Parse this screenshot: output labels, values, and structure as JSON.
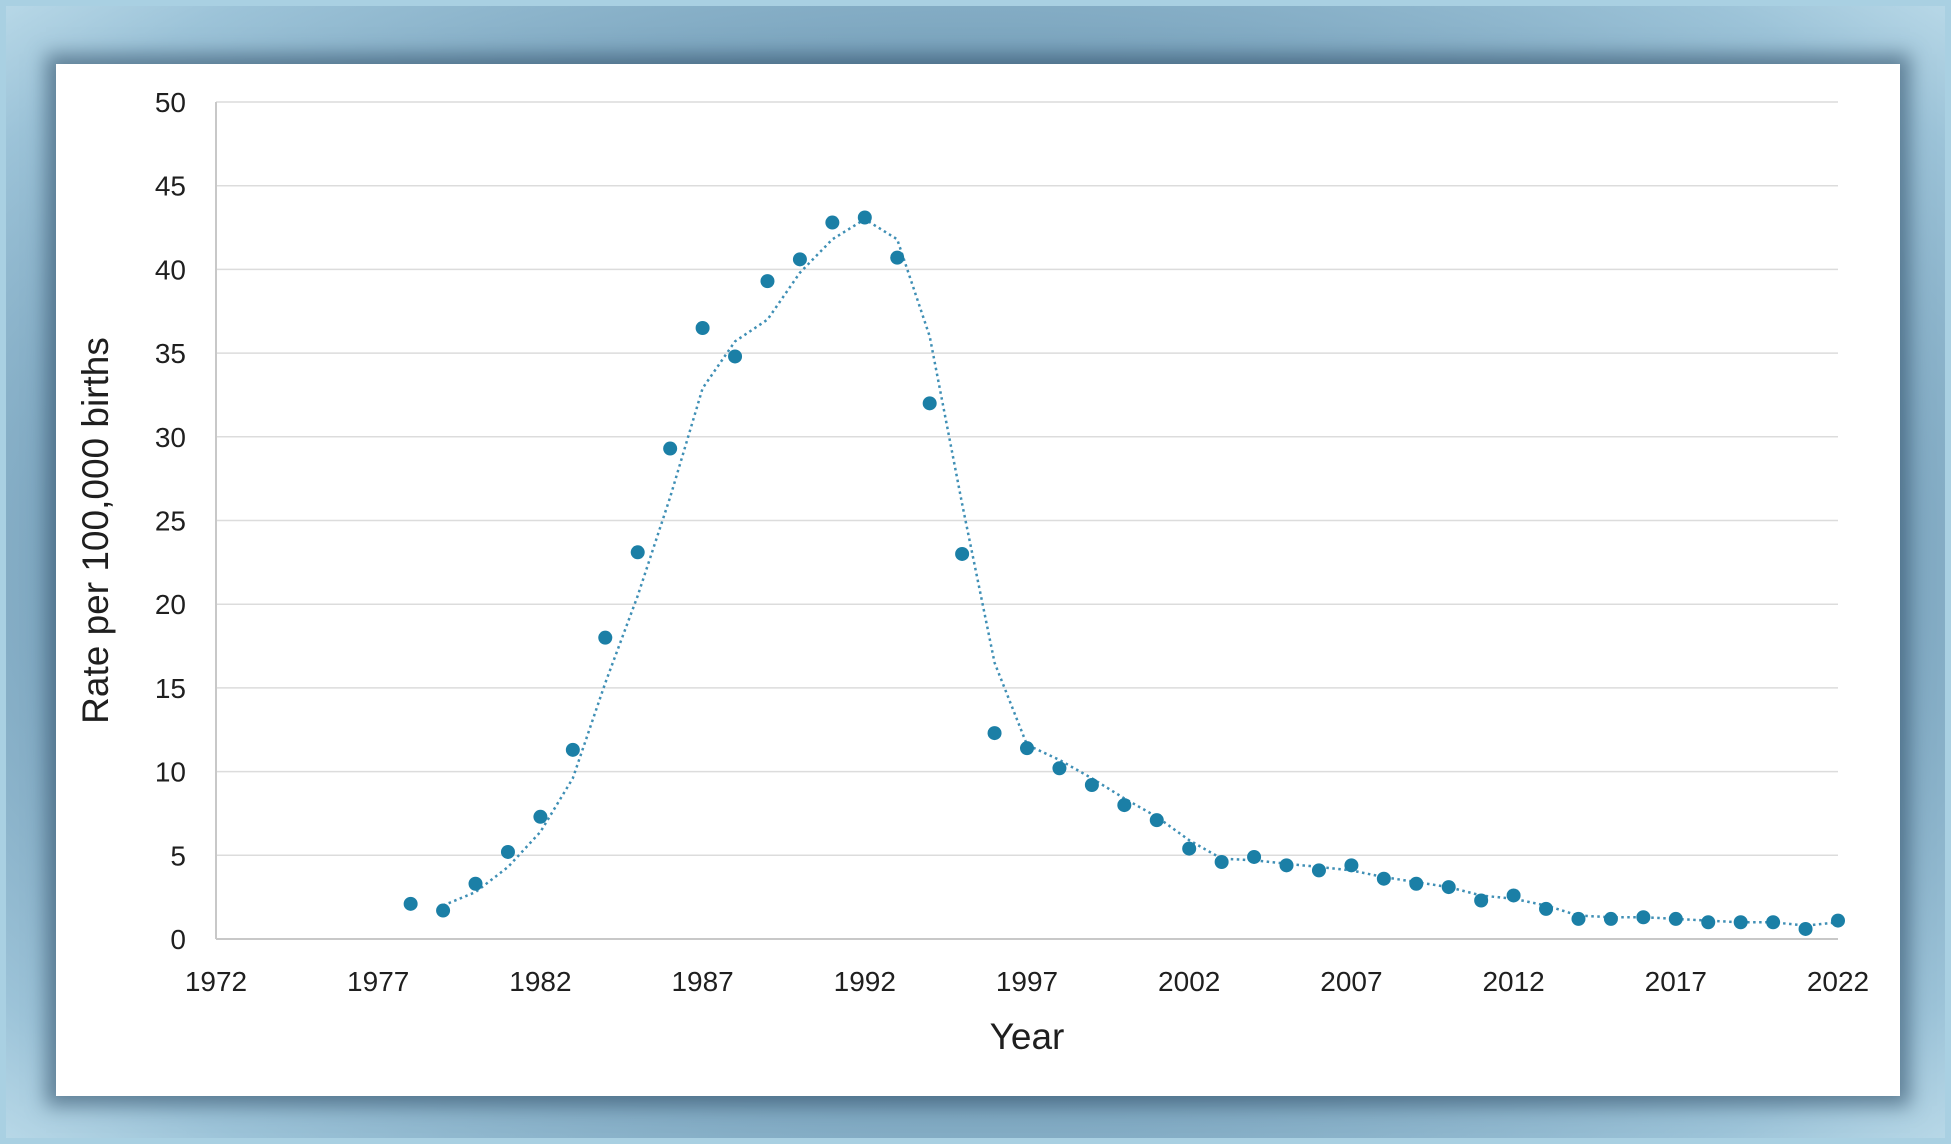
{
  "chart_data": {
    "type": "scatter",
    "xlabel": "Year",
    "ylabel": "Rate per 100,000 births",
    "xlim": [
      1972,
      2022
    ],
    "ylim": [
      0,
      50
    ],
    "x_ticks": [
      "1972",
      "1977",
      "1982",
      "1987",
      "1992",
      "1997",
      "2002",
      "2007",
      "2012",
      "2017",
      "2022"
    ],
    "y_ticks": [
      "0",
      "5",
      "10",
      "15",
      "20",
      "25",
      "30",
      "35",
      "40",
      "45",
      "50"
    ],
    "grid": "horizontal",
    "colors": {
      "point": "#1b7fa6",
      "trend": "#3f8fb5",
      "grid": "#dcdcdc",
      "axis": "#c8c8c8"
    },
    "series": [
      {
        "kind": "points",
        "x": [
          1978,
          1979,
          1980,
          1981,
          1982,
          1983,
          1984,
          1985,
          1986,
          1987,
          1988,
          1989,
          1990,
          1991,
          1992,
          1993,
          1994,
          1995,
          1996,
          1997,
          1998,
          1999,
          2000,
          2001,
          2002,
          2003,
          2004,
          2005,
          2006,
          2007,
          2008,
          2009,
          2010,
          2011,
          2012,
          2013,
          2014,
          2015,
          2016,
          2017,
          2018,
          2019,
          2020,
          2021,
          2022
        ],
        "y": [
          2.1,
          1.7,
          3.3,
          5.2,
          7.3,
          11.3,
          18.0,
          23.1,
          29.3,
          36.5,
          34.8,
          39.3,
          40.6,
          42.8,
          43.1,
          40.7,
          32.0,
          23.0,
          12.3,
          11.4,
          10.2,
          9.2,
          8.0,
          7.1,
          5.4,
          4.6,
          4.9,
          4.4,
          4.1,
          4.4,
          3.6,
          3.3,
          3.1,
          2.3,
          2.6,
          1.8,
          1.2,
          1.2,
          1.3,
          1.2,
          1.0,
          1.0,
          1.0,
          0.6,
          1.1
        ]
      },
      {
        "kind": "trend",
        "x": [
          1979,
          1980,
          1981,
          1982,
          1983,
          1984,
          1985,
          1986,
          1987,
          1988,
          1989,
          1990,
          1991,
          1992,
          1993,
          1994,
          1995,
          1996,
          1997,
          1998,
          1999,
          2000,
          2001,
          2002,
          2003,
          2004,
          2005,
          2006,
          2007,
          2008,
          2009,
          2010,
          2011,
          2012,
          2013,
          2014,
          2015,
          2016,
          2017,
          2018,
          2019,
          2020,
          2021,
          2022
        ],
        "y": [
          2.0,
          2.8,
          4.3,
          6.4,
          9.6,
          15.3,
          20.5,
          26.4,
          32.9,
          35.7,
          37.0,
          39.8,
          41.8,
          43.0,
          41.8,
          36.0,
          26.0,
          16.5,
          11.6,
          10.7,
          9.6,
          8.4,
          7.3,
          5.9,
          4.8,
          4.7,
          4.5,
          4.3,
          4.1,
          3.7,
          3.4,
          3.1,
          2.6,
          2.4,
          2.0,
          1.4,
          1.3,
          1.3,
          1.2,
          1.1,
          1.0,
          1.0,
          0.8,
          1.0
        ]
      }
    ]
  }
}
